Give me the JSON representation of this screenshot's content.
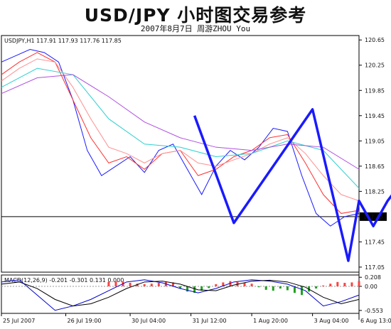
{
  "header": {
    "title": "USD/JPY 小时图交易参考",
    "subtitle": "2007年8月7日     周游ZHOU You"
  },
  "chart_data": [
    {
      "type": "line",
      "info_label": "USDJPY,H1  117.91 117.93 117.76 117.85",
      "ylim": [
        116.97,
        120.72
      ],
      "yticks": [
        120.65,
        120.25,
        119.85,
        119.45,
        119.05,
        118.65,
        118.25,
        117.85,
        117.45,
        117.05
      ],
      "current_price": 117.85,
      "xlim": [
        0,
        100
      ],
      "xtick_labels": [
        "25 Jul 2007",
        "26 Jul 19:00",
        "30 Jul 04:00",
        "31 Jul 12:00",
        "1 Aug 20:00",
        "3 Aug 04:00",
        "6 Aug 13:00"
      ],
      "xtick_pos": [
        0,
        18,
        36,
        53,
        70,
        87,
        100
      ],
      "series": [
        {
          "color": "#1a1aff",
          "x": [
            0,
            4,
            8,
            12,
            16,
            20,
            24,
            28,
            32,
            36,
            40,
            44,
            48,
            52,
            56,
            60,
            64,
            68,
            72,
            76,
            80,
            84,
            88,
            92,
            96,
            100
          ],
          "y": [
            120.3,
            120.4,
            120.5,
            120.45,
            120.3,
            119.7,
            118.9,
            118.5,
            118.65,
            118.8,
            118.55,
            118.9,
            119.0,
            118.6,
            118.2,
            118.65,
            118.9,
            118.75,
            118.95,
            119.25,
            119.2,
            118.5,
            117.9,
            117.7,
            117.85,
            117.9
          ]
        },
        {
          "color": "#ff3030",
          "x": [
            0,
            5,
            10,
            15,
            20,
            25,
            30,
            35,
            40,
            45,
            50,
            55,
            60,
            65,
            70,
            75,
            80,
            85,
            90,
            95,
            100
          ],
          "y": [
            120.1,
            120.3,
            120.45,
            120.3,
            119.7,
            119.1,
            118.7,
            118.8,
            118.6,
            118.85,
            118.9,
            118.5,
            118.6,
            118.8,
            118.9,
            119.1,
            119.15,
            118.7,
            118.2,
            117.9,
            117.95
          ]
        },
        {
          "color": "#ff9090",
          "x": [
            0,
            5,
            10,
            15,
            20,
            25,
            30,
            35,
            40,
            45,
            50,
            55,
            60,
            65,
            70,
            75,
            80,
            85,
            90,
            95,
            100
          ],
          "y": [
            120.0,
            120.2,
            120.35,
            120.3,
            119.9,
            119.4,
            118.95,
            118.85,
            118.7,
            118.85,
            118.9,
            118.7,
            118.65,
            118.75,
            118.85,
            119.0,
            119.1,
            118.85,
            118.5,
            118.2,
            118.1
          ]
        },
        {
          "color": "#30d0d0",
          "x": [
            0,
            10,
            20,
            30,
            40,
            50,
            60,
            70,
            80,
            90,
            100
          ],
          "y": [
            119.9,
            120.2,
            120.1,
            119.4,
            119.0,
            118.95,
            118.8,
            118.85,
            119.05,
            118.9,
            118.3
          ]
        },
        {
          "color": "#b050e0",
          "x": [
            0,
            10,
            20,
            30,
            40,
            50,
            60,
            70,
            80,
            90,
            100
          ],
          "y": [
            119.8,
            120.05,
            120.1,
            119.75,
            119.35,
            119.1,
            118.95,
            118.9,
            119.0,
            118.95,
            118.6
          ]
        }
      ],
      "trend_path": {
        "color": "#1a1aff",
        "x": [
          54,
          65,
          87,
          97,
          100,
          104,
          108,
          114
        ],
        "y": [
          119.45,
          117.75,
          119.55,
          117.15,
          118.1,
          117.7,
          118.1,
          118.55
        ]
      }
    },
    {
      "type": "bar",
      "info_label": "MACD(12,26,9) -0.201 -0.301 0.131 0.000",
      "ylim": [
        -0.62,
        0.26
      ],
      "yticks": [
        0.208,
        0.0,
        -0.553
      ],
      "histogram_x": [
        30,
        32,
        34,
        36,
        38,
        40,
        42,
        44,
        46,
        48,
        50,
        52,
        54,
        56,
        58,
        60,
        62,
        64,
        66,
        68,
        70,
        72,
        74,
        76,
        78,
        80,
        82,
        84,
        86,
        88,
        90,
        92,
        94,
        96,
        98,
        100
      ],
      "histogram": [
        0.1,
        0.12,
        0.11,
        0.08,
        0.06,
        0.05,
        0.06,
        0.08,
        0.1,
        0.09,
        -0.05,
        -0.12,
        -0.15,
        -0.1,
        -0.04,
        0.05,
        0.09,
        0.12,
        0.1,
        0.08,
        0.06,
        -0.02,
        -0.08,
        -0.1,
        -0.05,
        -0.09,
        -0.15,
        -0.2,
        -0.12,
        -0.05,
        0.02,
        0.06,
        0.1,
        0.08,
        0.09,
        0.12
      ],
      "histogram_color_up": "#ff4040",
      "histogram_color_down": "#20a020",
      "macd_line_x": [
        0,
        5,
        10,
        15,
        20,
        25,
        30,
        35,
        40,
        45,
        50,
        55,
        60,
        65,
        70,
        75,
        80,
        85,
        90,
        95,
        100
      ],
      "macd_line": [
        0.1,
        0.15,
        -0.2,
        -0.55,
        -0.45,
        -0.3,
        -0.1,
        0.1,
        0.15,
        0.08,
        -0.05,
        -0.15,
        -0.05,
        0.1,
        0.15,
        0.12,
        0.05,
        -0.1,
        -0.45,
        -0.35,
        -0.2
      ],
      "signal_line": [
        0.05,
        0.1,
        -0.05,
        -0.3,
        -0.45,
        -0.4,
        -0.25,
        -0.05,
        0.1,
        0.12,
        0.05,
        -0.08,
        -0.1,
        0.03,
        0.12,
        0.14,
        0.1,
        -0.02,
        -0.25,
        -0.4,
        -0.3
      ],
      "macd_color": "#0000cc",
      "signal_color": "#000000"
    }
  ]
}
